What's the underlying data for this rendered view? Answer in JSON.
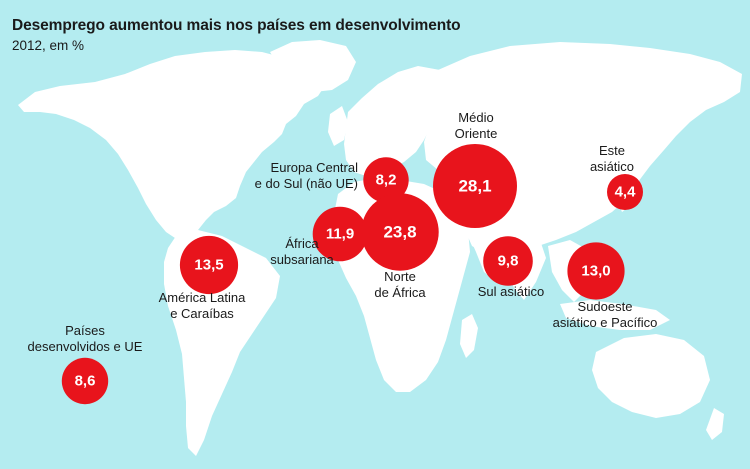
{
  "title": "Desemprego aumentou mais nos países em desenvolvimento",
  "subtitle": "2012, em %",
  "colors": {
    "water": "#b4ecf0",
    "land": "#ffffff",
    "bubble": "#e8141c"
  },
  "regions": [
    {
      "id": "developed",
      "label_lines": [
        "Países",
        "desenvolvidos e UE"
      ],
      "value": 8.6,
      "value_text": "8,6"
    },
    {
      "id": "latam",
      "label_lines": [
        "América Latina",
        "e Caraíbas"
      ],
      "value": 13.5,
      "value_text": "13,5"
    },
    {
      "id": "europe-central",
      "label_lines": [
        "Europa Central",
        "e do Sul (não UE)"
      ],
      "value": 8.2,
      "value_text": "8,2"
    },
    {
      "id": "subsaharan",
      "label_lines": [
        "África",
        "subsariana"
      ],
      "value": 11.9,
      "value_text": "11,9"
    },
    {
      "id": "north-africa",
      "label_lines": [
        "Norte",
        "de África"
      ],
      "value": 23.8,
      "value_text": "23,8"
    },
    {
      "id": "middle-east",
      "label_lines": [
        "Médio",
        "Oriente"
      ],
      "value": 28.1,
      "value_text": "28,1"
    },
    {
      "id": "east-asia",
      "label_lines": [
        "Este",
        "asiático"
      ],
      "value": 4.4,
      "value_text": "4,4"
    },
    {
      "id": "south-asia",
      "label_lines": [
        "Sul asiático"
      ],
      "value": 9.8,
      "value_text": "9,8"
    },
    {
      "id": "southeast-asia",
      "label_lines": [
        "Sudoeste",
        "asiático e Pacífico"
      ],
      "value": 13.0,
      "value_text": "13,0"
    }
  ]
}
